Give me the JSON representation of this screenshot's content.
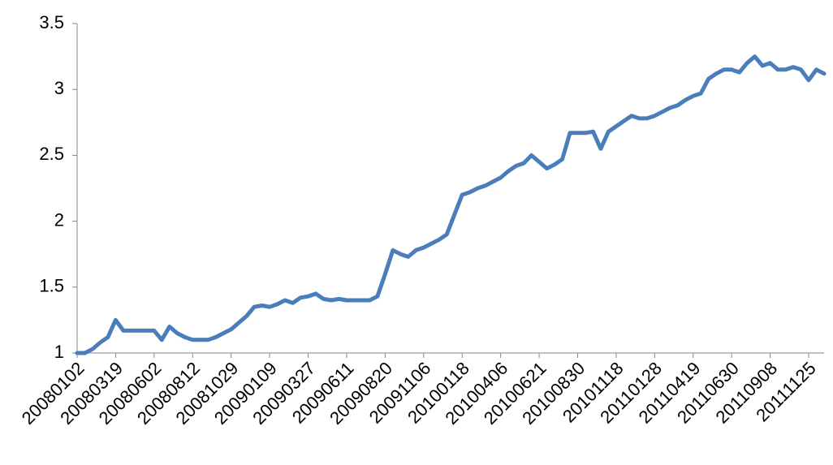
{
  "chart_data": {
    "type": "line",
    "categories": [
      "20080102",
      null,
      null,
      null,
      null,
      "20080319",
      null,
      null,
      null,
      null,
      "20080602",
      null,
      null,
      null,
      null,
      "20080812",
      null,
      null,
      null,
      null,
      "20081029",
      null,
      null,
      null,
      null,
      "20090109",
      null,
      null,
      null,
      null,
      "20090327",
      null,
      null,
      null,
      null,
      "20090611",
      null,
      null,
      null,
      null,
      "20090820",
      null,
      null,
      null,
      null,
      "20091106",
      null,
      null,
      null,
      null,
      "20100118",
      null,
      null,
      null,
      null,
      "20100406",
      null,
      null,
      null,
      null,
      "20100621",
      null,
      null,
      null,
      null,
      "20100830",
      null,
      null,
      null,
      null,
      "20101118",
      null,
      null,
      null,
      null,
      "20110128",
      null,
      null,
      null,
      null,
      "20110419",
      null,
      null,
      null,
      null,
      "20110630",
      null,
      null,
      null,
      null,
      "20110908",
      null,
      null,
      null,
      null,
      "20111125",
      null,
      null
    ],
    "values": [
      1.0,
      1.0,
      1.03,
      1.08,
      1.12,
      1.25,
      1.17,
      1.17,
      1.17,
      1.17,
      1.17,
      1.1,
      1.2,
      1.15,
      1.12,
      1.1,
      1.1,
      1.1,
      1.12,
      1.15,
      1.18,
      1.23,
      1.28,
      1.35,
      1.36,
      1.35,
      1.37,
      1.4,
      1.38,
      1.42,
      1.43,
      1.45,
      1.41,
      1.4,
      1.41,
      1.4,
      1.4,
      1.4,
      1.4,
      1.43,
      1.6,
      1.78,
      1.75,
      1.73,
      1.78,
      1.8,
      1.83,
      1.86,
      1.9,
      2.05,
      2.2,
      2.22,
      2.25,
      2.27,
      2.3,
      2.33,
      2.38,
      2.42,
      2.44,
      2.5,
      2.45,
      2.4,
      2.43,
      2.47,
      2.67,
      2.67,
      2.67,
      2.68,
      2.55,
      2.68,
      2.72,
      2.76,
      2.8,
      2.78,
      2.78,
      2.8,
      2.83,
      2.86,
      2.88,
      2.92,
      2.95,
      2.97,
      3.08,
      3.12,
      3.15,
      3.15,
      3.13,
      3.2,
      3.25,
      3.18,
      3.2,
      3.15,
      3.15,
      3.17,
      3.15,
      3.07,
      3.15,
      3.12
    ],
    "color": "#4a7ebb",
    "ylim": [
      1,
      3.5
    ],
    "yticks": [
      1,
      1.5,
      2,
      2.5,
      3,
      3.5
    ],
    "grid": false
  }
}
